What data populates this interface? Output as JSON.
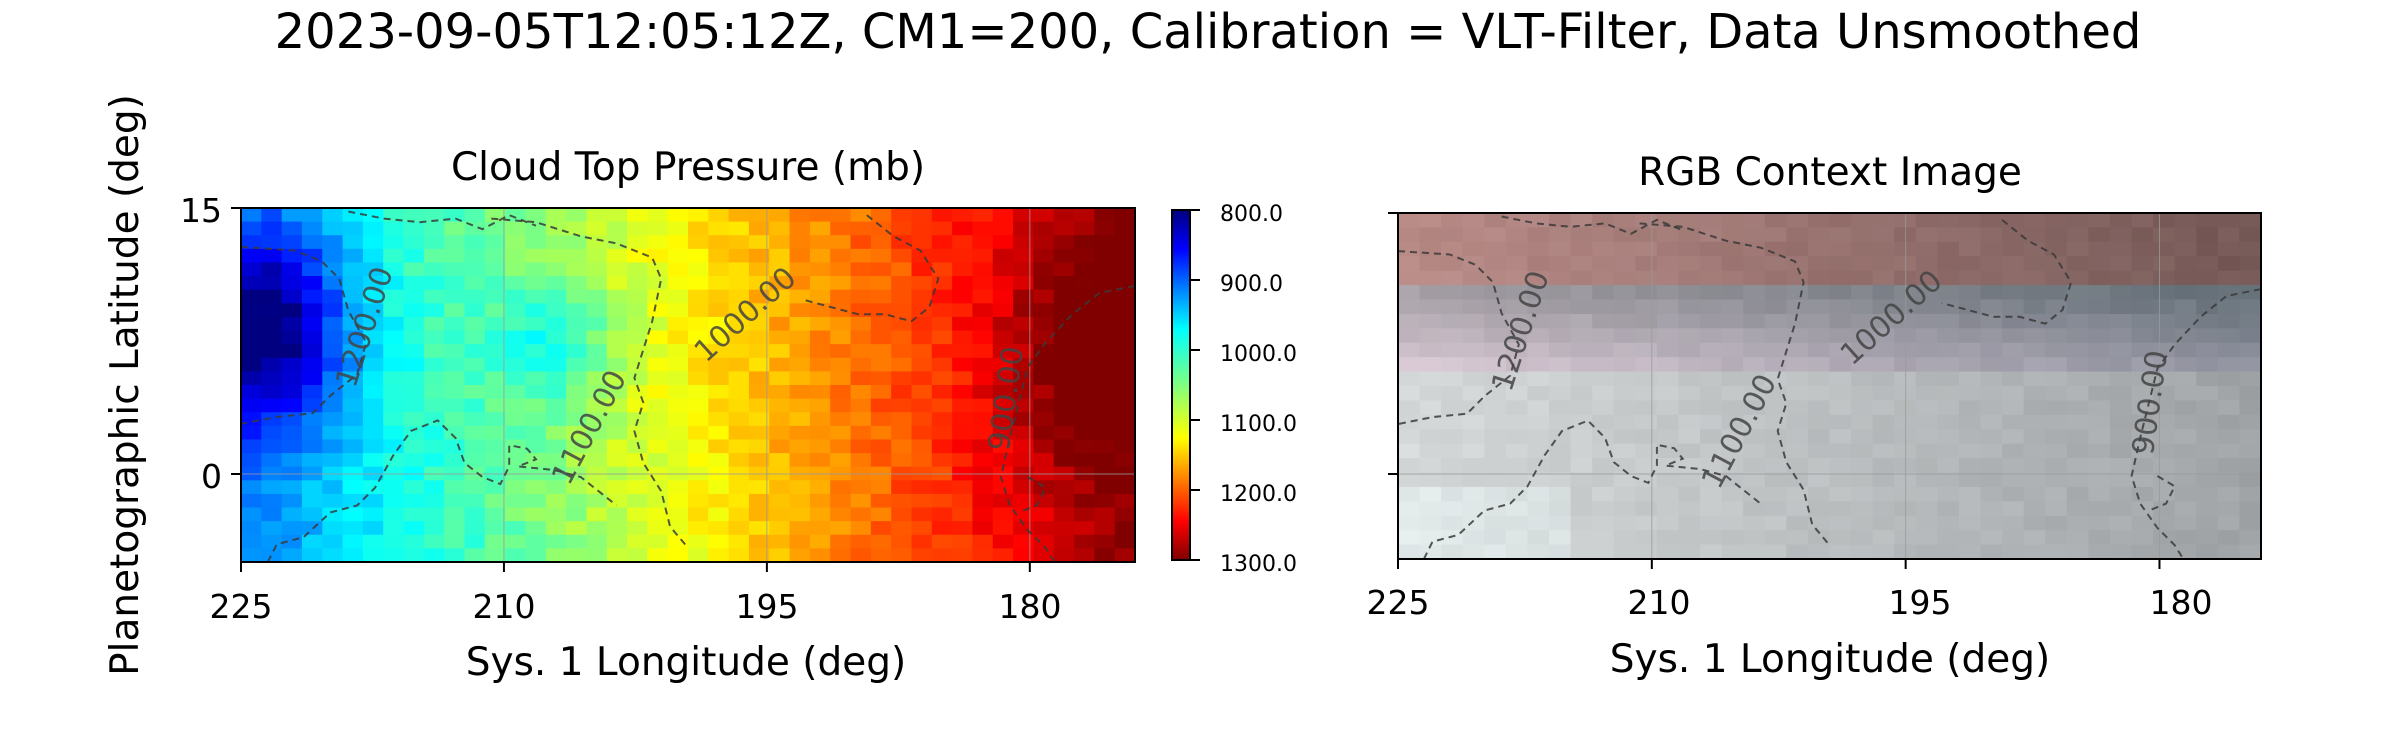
{
  "figure_title": "2023-09-05T12:05:12Z, CM1=200, Calibration = VLT-Filter, Data Unsmoothed",
  "colors": {
    "contour": "#3a3a3a",
    "grid": "#9a9a9a",
    "axes": "#000000"
  },
  "chart_data": [
    {
      "type": "heatmap",
      "title": "Cloud Top Pressure (mb)",
      "xlabel": "Sys. 1 Longitude (deg)",
      "ylabel": "Planetographic Latitude (deg)",
      "xlim": [
        225,
        174
      ],
      "ylim": [
        -5,
        15
      ],
      "x_ticks": [
        225,
        210,
        195,
        180
      ],
      "x_tick_labels": [
        "225",
        "210",
        "195",
        "180"
      ],
      "y_ticks": [
        15,
        0
      ],
      "y_tick_labels": [
        "15",
        "0"
      ],
      "colormap": "jet",
      "colorbar": {
        "range": [
          800,
          1300
        ],
        "reversed": true,
        "ticks": [
          800,
          900,
          1000,
          1100,
          1200,
          1300
        ],
        "tick_labels": [
          "800.0",
          "900.0",
          "1000.0",
          "1100.0",
          "1200.0",
          "1300.0"
        ]
      },
      "contour_labels": [
        "1200.00",
        "1100.00",
        "1000.00",
        "900.00"
      ],
      "grid": true
    },
    {
      "type": "image",
      "title": "RGB Context Image",
      "xlabel": "Sys. 1 Longitude (deg)",
      "xlim": [
        225,
        174
      ],
      "x_ticks": [
        225,
        210,
        195,
        180
      ],
      "x_tick_labels": [
        "225",
        "210",
        "195",
        "180"
      ],
      "contour_labels": [
        "1200.00",
        "1100.00",
        "1000.00",
        "900.00"
      ],
      "grid": true
    }
  ]
}
